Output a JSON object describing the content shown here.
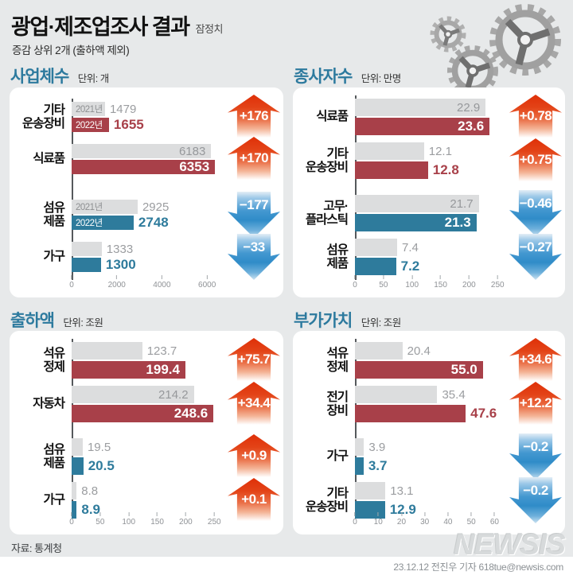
{
  "header": {
    "title": "광업·제조업조사 결과",
    "badge": "잠정치",
    "subtitle": "증감 상위 2개 (출하액 제외)"
  },
  "footer": {
    "source": "자료: 통계청",
    "watermark": "NEWSIS",
    "credit": "23.12.12 전진우 기자 618tue@newsis.com"
  },
  "colors": {
    "background": "#e7e9ea",
    "panel": "#ffffff",
    "accent_title": "#2d7a9e",
    "bar_2021": "#dcddde",
    "bar_increase": "#a84049",
    "bar_decrease": "#2e7b9c",
    "arrow_up": "#df3008",
    "arrow_down": "#2f8cc8"
  },
  "chart_data": [
    {
      "type": "bar",
      "title": "사업체수",
      "unit_label": "단위:",
      "unit": "개",
      "axis_ticks": [
        "0",
        "2000",
        "4000",
        "6000"
      ],
      "axis_max": 6700,
      "value_scale": 1,
      "legend": [
        "2021년",
        "2022년"
      ],
      "categories": [
        "기타 운송장비",
        "식료품",
        "섬유 제품",
        "가구"
      ],
      "series": [
        {
          "name": "2021년",
          "values": [
            1479,
            6183,
            2925,
            1333
          ]
        },
        {
          "name": "2022년",
          "values": [
            1655,
            6353,
            2748,
            1300
          ]
        }
      ],
      "rows": [
        {
          "category_lines": [
            "기타",
            "운송장비"
          ],
          "prev": 1479,
          "curr": 1655,
          "prev_label": "1479",
          "curr_label": "1655",
          "delta": "+176",
          "trend": "up",
          "color": "inc",
          "show_years": true,
          "prev_inside": false,
          "curr_inside": false,
          "gap_before": false
        },
        {
          "category_lines": [
            "식료품"
          ],
          "prev": 6183,
          "curr": 6353,
          "prev_label": "6183",
          "curr_label": "6353",
          "delta": "+170",
          "trend": "up",
          "color": "inc",
          "show_years": false,
          "prev_inside": true,
          "curr_inside": true,
          "gap_before": false
        },
        {
          "category_lines": [
            "섬유",
            "제품"
          ],
          "prev": 2925,
          "curr": 2748,
          "prev_label": "2925",
          "curr_label": "2748",
          "delta": "−177",
          "trend": "down",
          "color": "dec",
          "show_years": true,
          "prev_inside": false,
          "curr_inside": false,
          "gap_before": true
        },
        {
          "category_lines": [
            "가구"
          ],
          "prev": 1333,
          "curr": 1300,
          "prev_label": "1333",
          "curr_label": "1300",
          "delta": "−33",
          "trend": "down",
          "color": "dec",
          "show_years": false,
          "prev_inside": false,
          "curr_inside": false,
          "gap_before": false
        }
      ]
    },
    {
      "type": "bar",
      "title": "종사자수",
      "unit_label": "단위:",
      "unit": "만명",
      "axis_ticks": [
        "0",
        "50",
        "100",
        "150",
        "200",
        "250"
      ],
      "axis_max": 265,
      "value_scale": 10,
      "legend": [
        "2021년",
        "2022년"
      ],
      "categories": [
        "식료품",
        "기타 운송장비",
        "고무·플라스틱",
        "섬유 제품"
      ],
      "series": [
        {
          "name": "2021년",
          "values": [
            22.9,
            12.1,
            21.7,
            7.4
          ]
        },
        {
          "name": "2022년",
          "values": [
            23.6,
            12.8,
            21.3,
            7.2
          ]
        }
      ],
      "rows": [
        {
          "category_lines": [
            "식료품"
          ],
          "prev": 22.9,
          "curr": 23.6,
          "prev_label": "22.9",
          "curr_label": "23.6",
          "delta": "+0.78",
          "trend": "up",
          "color": "inc",
          "show_years": false,
          "prev_inside": true,
          "curr_inside": true,
          "gap_before": false
        },
        {
          "category_lines": [
            "기타",
            "운송장비"
          ],
          "prev": 12.1,
          "curr": 12.8,
          "prev_label": "12.1",
          "curr_label": "12.8",
          "delta": "+0.75",
          "trend": "up",
          "color": "inc",
          "show_years": false,
          "prev_inside": false,
          "curr_inside": false,
          "gap_before": false
        },
        {
          "category_lines": [
            "고무·",
            "플라스틱"
          ],
          "prev": 21.7,
          "curr": 21.3,
          "prev_label": "21.7",
          "curr_label": "21.3",
          "delta": "−0.46",
          "trend": "down",
          "color": "dec",
          "show_years": false,
          "prev_inside": true,
          "curr_inside": true,
          "gap_before": true
        },
        {
          "category_lines": [
            "섬유",
            "제품"
          ],
          "prev": 7.4,
          "curr": 7.2,
          "prev_label": "7.4",
          "curr_label": "7.2",
          "delta": "−0.27",
          "trend": "down",
          "color": "dec",
          "show_years": false,
          "prev_inside": false,
          "curr_inside": false,
          "gap_before": false
        }
      ]
    },
    {
      "type": "bar",
      "title": "출하액",
      "unit_label": "단위:",
      "unit": "조원",
      "axis_ticks": [
        "0",
        "50",
        "100",
        "150",
        "200",
        "250"
      ],
      "axis_max": 265,
      "value_scale": 1,
      "legend": [
        "2021년",
        "2022년"
      ],
      "categories": [
        "석유 정제",
        "자동차",
        "섬유 제품",
        "가구"
      ],
      "series": [
        {
          "name": "2021년",
          "values": [
            123.7,
            214.2,
            19.5,
            8.8
          ]
        },
        {
          "name": "2022년",
          "values": [
            199.4,
            248.6,
            20.5,
            8.9
          ]
        }
      ],
      "rows": [
        {
          "category_lines": [
            "석유",
            "정제"
          ],
          "prev": 123.7,
          "curr": 199.4,
          "prev_label": "123.7",
          "curr_label": "199.4",
          "delta": "+75.7",
          "trend": "up",
          "color": "inc",
          "show_years": false,
          "prev_inside": false,
          "curr_inside": true,
          "gap_before": false
        },
        {
          "category_lines": [
            "자동차"
          ],
          "prev": 214.2,
          "curr": 248.6,
          "prev_label": "214.2",
          "curr_label": "248.6",
          "delta": "+34.4",
          "trend": "up",
          "color": "inc",
          "show_years": false,
          "prev_inside": true,
          "curr_inside": true,
          "gap_before": false
        },
        {
          "category_lines": [
            "섬유",
            "제품"
          ],
          "prev": 19.5,
          "curr": 20.5,
          "prev_label": "19.5",
          "curr_label": "20.5",
          "delta": "+0.9",
          "trend": "up",
          "color": "dec",
          "show_years": false,
          "prev_inside": false,
          "curr_inside": false,
          "gap_before": true
        },
        {
          "category_lines": [
            "가구"
          ],
          "prev": 8.8,
          "curr": 8.9,
          "prev_label": "8.8",
          "curr_label": "8.9",
          "delta": "+0.1",
          "trend": "up",
          "color": "dec",
          "show_years": false,
          "prev_inside": false,
          "curr_inside": false,
          "gap_before": false
        }
      ]
    },
    {
      "type": "bar",
      "title": "부가가치",
      "unit_label": "단위:",
      "unit": "조원",
      "axis_ticks": [
        "0",
        "10",
        "20",
        "30",
        "40",
        "50",
        "60"
      ],
      "axis_max": 65,
      "value_scale": 1,
      "legend": [
        "2021년",
        "2022년"
      ],
      "categories": [
        "석유 정제",
        "전기 장비",
        "가구",
        "기타 운송장비"
      ],
      "series": [
        {
          "name": "2021년",
          "values": [
            20.4,
            35.4,
            3.9,
            13.1
          ]
        },
        {
          "name": "2022년",
          "values": [
            55.0,
            47.6,
            3.7,
            12.9
          ]
        }
      ],
      "rows": [
        {
          "category_lines": [
            "석유",
            "정제"
          ],
          "prev": 20.4,
          "curr": 55.0,
          "prev_label": "20.4",
          "curr_label": "55.0",
          "delta": "+34.6",
          "trend": "up",
          "color": "inc",
          "show_years": false,
          "prev_inside": false,
          "curr_inside": true,
          "gap_before": false
        },
        {
          "category_lines": [
            "전기",
            "장비"
          ],
          "prev": 35.4,
          "curr": 47.6,
          "prev_label": "35.4",
          "curr_label": "47.6",
          "delta": "+12.2",
          "trend": "up",
          "color": "inc",
          "show_years": false,
          "prev_inside": false,
          "curr_inside": false,
          "gap_before": false
        },
        {
          "category_lines": [
            "가구"
          ],
          "prev": 3.9,
          "curr": 3.7,
          "prev_label": "3.9",
          "curr_label": "3.7",
          "delta": "−0.2",
          "trend": "down",
          "color": "dec",
          "show_years": false,
          "prev_inside": false,
          "curr_inside": false,
          "gap_before": true
        },
        {
          "category_lines": [
            "기타",
            "운송장비"
          ],
          "prev": 13.1,
          "curr": 12.9,
          "prev_label": "13.1",
          "curr_label": "12.9",
          "delta": "−0.2",
          "trend": "down",
          "color": "dec",
          "show_years": false,
          "prev_inside": false,
          "curr_inside": false,
          "gap_before": false
        }
      ]
    }
  ]
}
